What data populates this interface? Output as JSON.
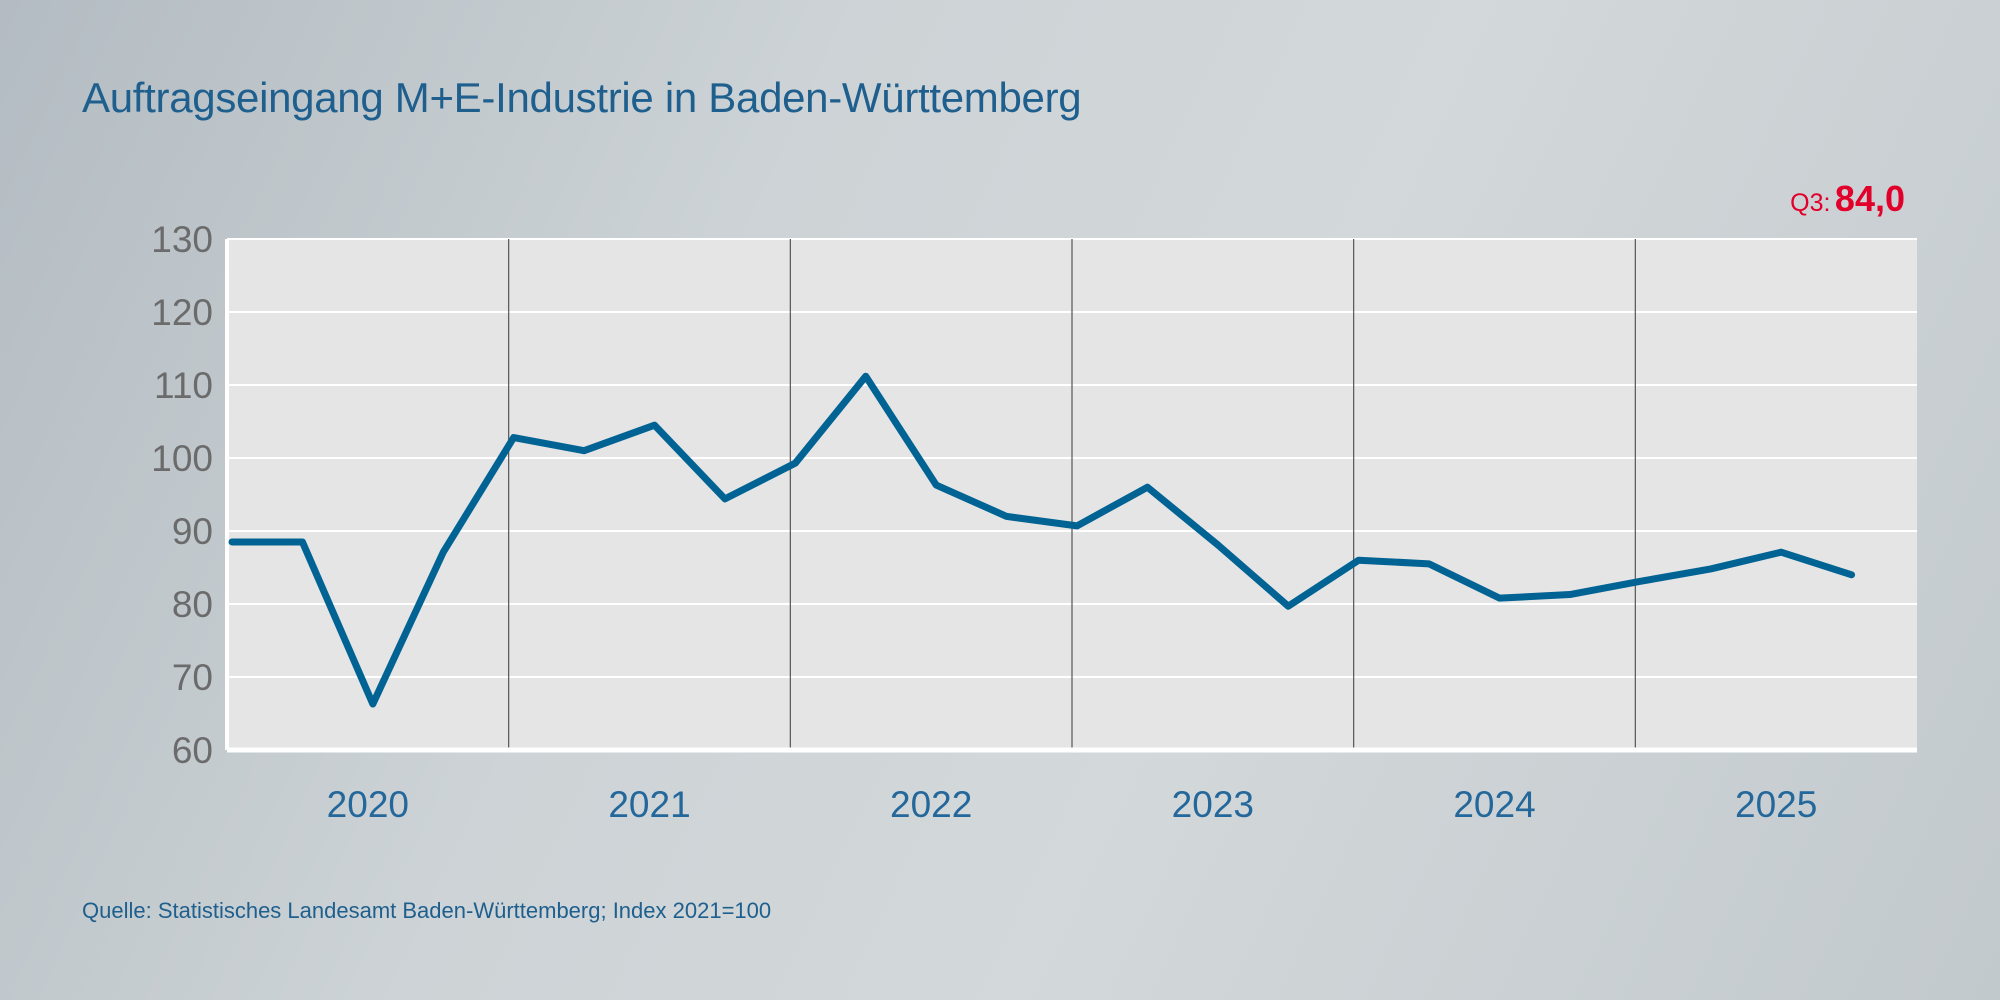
{
  "title": "Auftragseingang M+E-Industrie in Baden-Württemberg",
  "highlight": {
    "label": "Q3:",
    "value": "84,0",
    "color": "#e2002a"
  },
  "source": "Quelle: Statistisches Landesamt Baden-Württemberg; Index 2021=100",
  "chart_data": {
    "type": "line",
    "title": "Auftragseingang M+E-Industrie in Baden-Württemberg",
    "xlabel": "",
    "ylabel": "",
    "ylim": [
      60,
      130
    ],
    "yticks": [
      60,
      70,
      80,
      90,
      100,
      110,
      120,
      130
    ],
    "xtick_labels": [
      "2020",
      "2021",
      "2022",
      "2023",
      "2024",
      "2025"
    ],
    "grid": true,
    "line_color": "#006394",
    "x": [
      "2019 Q4",
      "2020 Q1",
      "2020 Q2",
      "2020 Q3",
      "2020 Q4",
      "2021 Q1",
      "2021 Q2",
      "2021 Q3",
      "2021 Q4",
      "2022 Q1",
      "2022 Q2",
      "2022 Q3",
      "2022 Q4",
      "2023 Q1",
      "2023 Q2",
      "2023 Q3",
      "2023 Q4",
      "2024 Q1",
      "2024 Q2",
      "2024 Q3",
      "2024 Q4",
      "2025 Q1",
      "2025 Q2",
      "2025 Q3"
    ],
    "values": [
      88.5,
      88.5,
      66.3,
      87.1,
      102.8,
      101.0,
      104.5,
      94.4,
      99.3,
      111.2,
      96.3,
      92.0,
      90.7,
      96.0,
      88.1,
      79.7,
      86.0,
      85.5,
      80.8,
      81.3,
      83.1,
      84.8,
      87.1,
      84.0
    ]
  }
}
